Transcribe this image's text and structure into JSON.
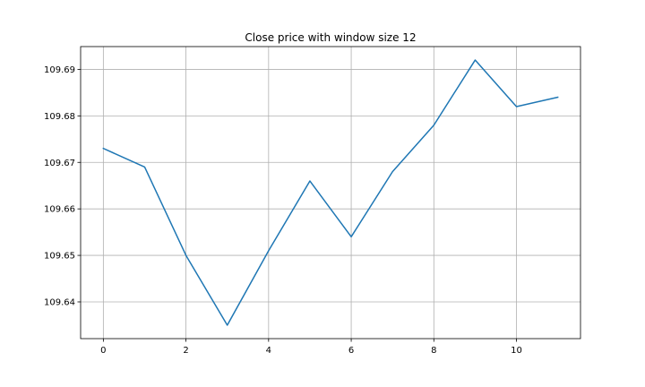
{
  "chart_data": {
    "type": "line",
    "title": "Close price with window size 12",
    "xlabel": "",
    "ylabel": "",
    "x": [
      0,
      1,
      2,
      3,
      4,
      5,
      6,
      7,
      8,
      9,
      10,
      11
    ],
    "series": [
      {
        "values": [
          109.673,
          109.669,
          109.65,
          109.635,
          109.651,
          109.666,
          109.654,
          109.668,
          109.678,
          109.692,
          109.682,
          109.684
        ],
        "color": "#1f77b4"
      }
    ],
    "xlim": [
      -0.55,
      11.55
    ],
    "ylim": [
      109.6321,
      109.6949
    ],
    "xticks": [
      0,
      2,
      4,
      6,
      8,
      10
    ],
    "xtick_labels": [
      "0",
      "2",
      "4",
      "6",
      "8",
      "10"
    ],
    "yticks": [
      109.64,
      109.65,
      109.66,
      109.67,
      109.68,
      109.69
    ],
    "ytick_labels": [
      "109.64",
      "109.65",
      "109.66",
      "109.67",
      "109.68",
      "109.69"
    ],
    "grid": true
  }
}
